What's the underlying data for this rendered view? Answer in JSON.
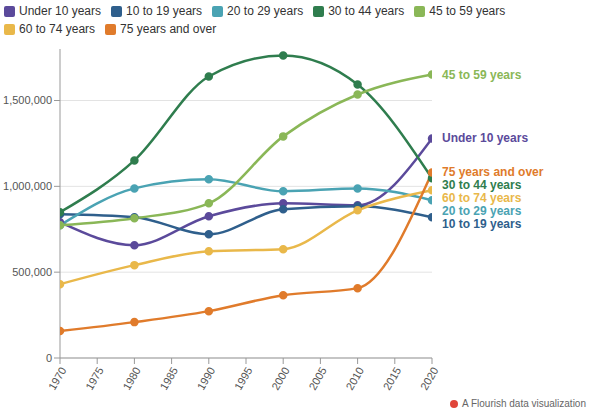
{
  "chart_data": {
    "type": "line",
    "caption": "A Flourish data visualization",
    "x": [
      1970,
      1980,
      1990,
      2000,
      2010,
      2020
    ],
    "xlim": [
      1970,
      2020
    ],
    "xticks": [
      1970,
      1975,
      1980,
      1985,
      1990,
      1995,
      2000,
      2005,
      2010,
      2015,
      2020
    ],
    "ylim": [
      0,
      1800000
    ],
    "yticks": [
      0,
      {
        "value": 500000,
        "label": "500,000"
      },
      {
        "value": 1000000,
        "label": "1,000,000"
      },
      {
        "value": 1500000,
        "label": "1,500,000"
      }
    ],
    "grid": true,
    "legend": "top",
    "marker": "circle",
    "series": [
      {
        "name": "Under 10 years",
        "color": "#5b4a9b",
        "values": [
          791000,
          657000,
          826000,
          901000,
          890000,
          1279000
        ]
      },
      {
        "name": "10 to 19 years",
        "color": "#2f5f8c",
        "values": [
          837000,
          820000,
          721000,
          866000,
          884000,
          820000
        ]
      },
      {
        "name": "20 to 29 years",
        "color": "#4aa3b3",
        "values": [
          773000,
          988000,
          1041000,
          971000,
          988000,
          919000
        ]
      },
      {
        "name": "30 to 44 years",
        "color": "#2f7d4e",
        "values": [
          849000,
          1151000,
          1640000,
          1762000,
          1593000,
          1047000
        ]
      },
      {
        "name": "45 to 59 years",
        "color": "#8ab757",
        "values": [
          773000,
          814000,
          901000,
          1291000,
          1535000,
          1651000
        ]
      },
      {
        "name": "60 to 74 years",
        "color": "#e9b84a",
        "values": [
          430000,
          541000,
          622000,
          634000,
          860000,
          977000
        ]
      },
      {
        "name": "75 years and over",
        "color": "#e07b2b",
        "values": [
          157000,
          209000,
          273000,
          366000,
          407000,
          1081000
        ]
      }
    ]
  }
}
